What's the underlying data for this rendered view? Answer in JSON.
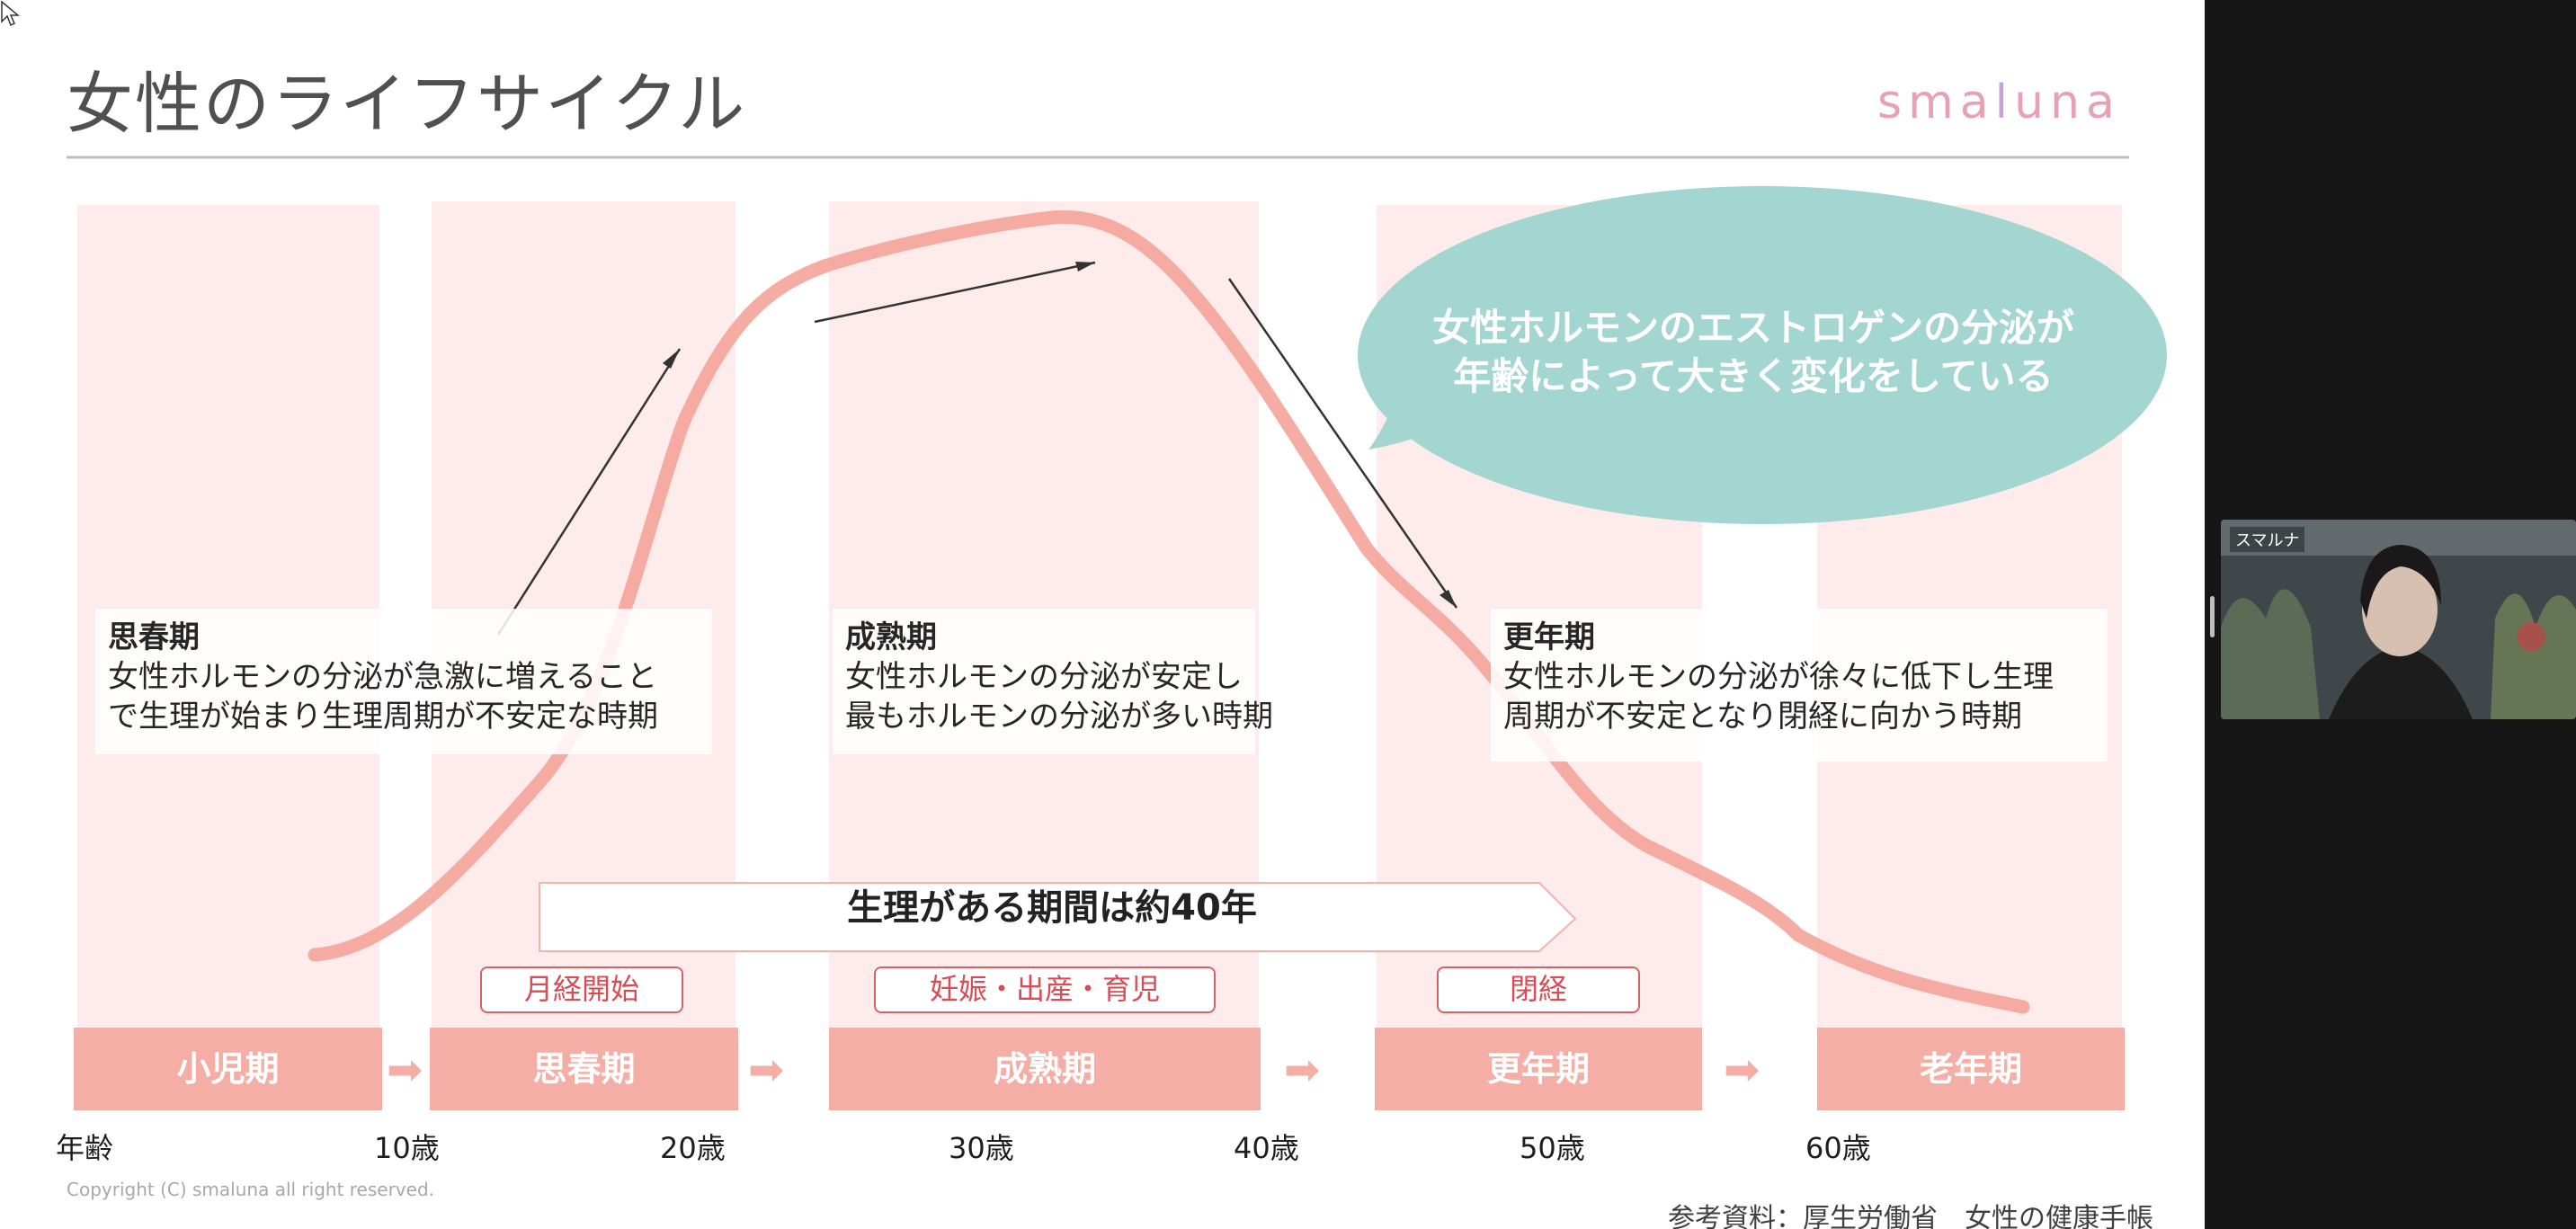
{
  "slide": {
    "title": "女性のライフサイクル",
    "logo": {
      "before": "sma",
      "highlight": "l",
      "after": "una"
    },
    "copyright": "Copyright (C)    smaluna all right reserved.",
    "reference": "参考資料：厚生労働省　女性の健康手帳"
  },
  "bubble": {
    "line1": "女性ホルモンのエストロゲンの分泌が",
    "line2": "年齢によって大きく変化をしている"
  },
  "info_boxes": [
    {
      "title": "思春期",
      "line1": "女性ホルモンの分泌が急激に増えること",
      "line2": "で生理が始まり生理周期が不安定な時期"
    },
    {
      "title": "成熟期",
      "line1": "女性ホルモンの分泌が安定し",
      "line2": "最もホルモンの分泌が多い時期"
    },
    {
      "title": "更年期",
      "line1": "女性ホルモンの分泌が徐々に低下し生理",
      "line2": "周期が不安定となり閉経に向かう時期"
    }
  ],
  "period_arrow": "生理がある期間は約40年",
  "tags": [
    "月経開始",
    "妊娠・出産・育児",
    "閉経"
  ],
  "stages": [
    "小児期",
    "思春期",
    "成熟期",
    "更年期",
    "老年期"
  ],
  "stage_arrow_glyph": "➡",
  "ages": [
    "年齢",
    "10歳",
    "20歳",
    "30歳",
    "40歳",
    "50歳",
    "60歳"
  ],
  "video": {
    "badge": "スマルナ"
  },
  "colors": {
    "accent": "#f4aea5",
    "curve": "#f4a59b",
    "column": "#fdeceb",
    "bubble": "#a3d5d1",
    "tag_border": "#d96066"
  }
}
